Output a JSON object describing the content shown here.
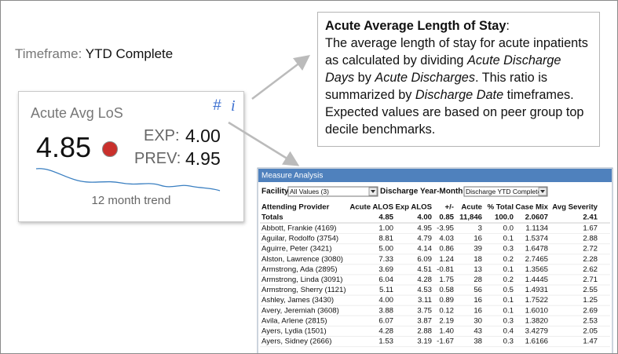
{
  "timeframe": {
    "label": "Timeframe:",
    "value": "YTD Complete"
  },
  "kpi_card": {
    "title": "Acute Avg LoS",
    "icon_hash": "#",
    "icon_info": "i",
    "value": "4.85",
    "exp_label": "EXP:",
    "exp_value": "4.00",
    "prev_label": "PREV:",
    "prev_value": "4.95",
    "trend_label": "12 month trend"
  },
  "callout": {
    "title": "Acute Average Length of Stay",
    "title_suffix": ":",
    "segments": [
      {
        "text": "The average length of stay for acute inpatients as calculated by dividing ",
        "italic": false
      },
      {
        "text": "Acute Discharge Days",
        "italic": true
      },
      {
        "text": " by ",
        "italic": false
      },
      {
        "text": "Acute Discharges",
        "italic": true
      },
      {
        "text": ". This ratio is summarized by ",
        "italic": false
      },
      {
        "text": "Discharge Date",
        "italic": true
      },
      {
        "text": " timeframes. Expected values are based on peer group top decile benchmarks.",
        "italic": false
      }
    ]
  },
  "panel": {
    "title": "Measure Analysis",
    "filters": [
      {
        "label": "Facility",
        "value": "All Values (3)"
      },
      {
        "label": "Discharge Year-Month",
        "value": "Discharge YTD Complete"
      }
    ],
    "table": {
      "columns": [
        "Attending Provider",
        "Acute ALOS",
        "Exp ALOS",
        "+/-",
        "Acute",
        "% Total",
        "Case Mix",
        "Avg Severity"
      ],
      "totals": [
        "Totals",
        "4.85",
        "4.00",
        "0.85",
        "11,846",
        "100.0",
        "2.0607",
        "2.41"
      ],
      "rows": [
        [
          "Abbott, Frankie (4169)",
          "1.00",
          "4.95",
          "-3.95",
          "3",
          "0.0",
          "1.1134",
          "1.67"
        ],
        [
          "Aguilar, Rodolfo (3754)",
          "8.81",
          "4.79",
          "4.03",
          "16",
          "0.1",
          "1.5374",
          "2.88"
        ],
        [
          "Aguirre, Peter (3421)",
          "5.00",
          "4.14",
          "0.86",
          "39",
          "0.3",
          "1.6478",
          "2.72"
        ],
        [
          "Alston, Lawrence (3080)",
          "7.33",
          "6.09",
          "1.24",
          "18",
          "0.2",
          "2.7465",
          "2.28"
        ],
        [
          "Armstrong, Ada (2895)",
          "3.69",
          "4.51",
          "-0.81",
          "13",
          "0.1",
          "1.3565",
          "2.62"
        ],
        [
          "Armstrong, Linda (3091)",
          "6.04",
          "4.28",
          "1.75",
          "28",
          "0.2",
          "1.4445",
          "2.71"
        ],
        [
          "Armstrong, Sherry (1121)",
          "5.11",
          "4.53",
          "0.58",
          "56",
          "0.5",
          "1.4931",
          "2.55"
        ],
        [
          "Ashley, James (3430)",
          "4.00",
          "3.11",
          "0.89",
          "16",
          "0.1",
          "1.7522",
          "1.25"
        ],
        [
          "Avery, Jeremiah (3608)",
          "3.88",
          "3.75",
          "0.12",
          "16",
          "0.1",
          "1.6010",
          "2.69"
        ],
        [
          "Avila, Arlene (2815)",
          "6.07",
          "3.87",
          "2.19",
          "30",
          "0.3",
          "1.3820",
          "2.53"
        ],
        [
          "Ayers, Lydia (1501)",
          "4.28",
          "2.88",
          "1.40",
          "43",
          "0.4",
          "3.4279",
          "2.05"
        ],
        [
          "Ayers, Sidney (2666)",
          "1.53",
          "3.19",
          "-1.67",
          "38",
          "0.3",
          "1.6166",
          "1.47"
        ]
      ]
    }
  }
}
